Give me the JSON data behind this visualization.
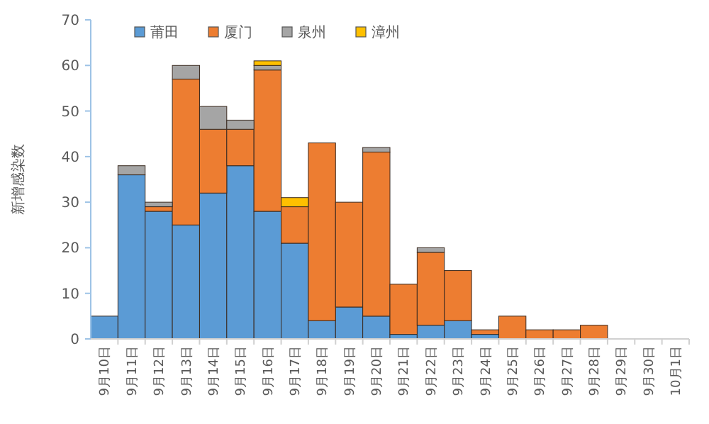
{
  "chart_data": {
    "type": "bar",
    "stacked": true,
    "ylabel": "新增感染数",
    "categories": [
      "9月10日",
      "9月11日",
      "9月12日",
      "9月13日",
      "9月14日",
      "9月15日",
      "9月16日",
      "9月17日",
      "9月18日",
      "9月19日",
      "9月20日",
      "9月21日",
      "9月22日",
      "9月23日",
      "9月24日",
      "9月25日",
      "9月26日",
      "9月27日",
      "9月28日",
      "9月29日",
      "9月30日",
      "10月1日"
    ],
    "series": [
      {
        "name": "莆田",
        "color": "#5b9bd5",
        "values": [
          5,
          36,
          28,
          25,
          32,
          38,
          28,
          21,
          4,
          7,
          5,
          1,
          3,
          4,
          1,
          0,
          0,
          0,
          0,
          0,
          0,
          0
        ]
      },
      {
        "name": "厦门",
        "color": "#ed7d31",
        "values": [
          0,
          0,
          1,
          32,
          14,
          8,
          31,
          8,
          39,
          23,
          36,
          11,
          16,
          11,
          1,
          5,
          2,
          2,
          3,
          0,
          0,
          0
        ]
      },
      {
        "name": "泉州",
        "color": "#a5a5a5",
        "values": [
          0,
          2,
          1,
          3,
          5,
          2,
          1,
          0,
          0,
          0,
          1,
          0,
          1,
          0,
          0,
          0,
          0,
          0,
          0,
          0,
          0,
          0
        ]
      },
      {
        "name": "漳州",
        "color": "#ffc000",
        "values": [
          0,
          0,
          0,
          0,
          0,
          0,
          1,
          2,
          0,
          0,
          0,
          0,
          0,
          0,
          0,
          0,
          0,
          0,
          0,
          0,
          0,
          0
        ]
      }
    ],
    "ylim": [
      0,
      70
    ],
    "yticks": [
      0,
      10,
      20,
      30,
      40,
      50,
      60,
      70
    ],
    "grid": false,
    "legend": "top"
  }
}
